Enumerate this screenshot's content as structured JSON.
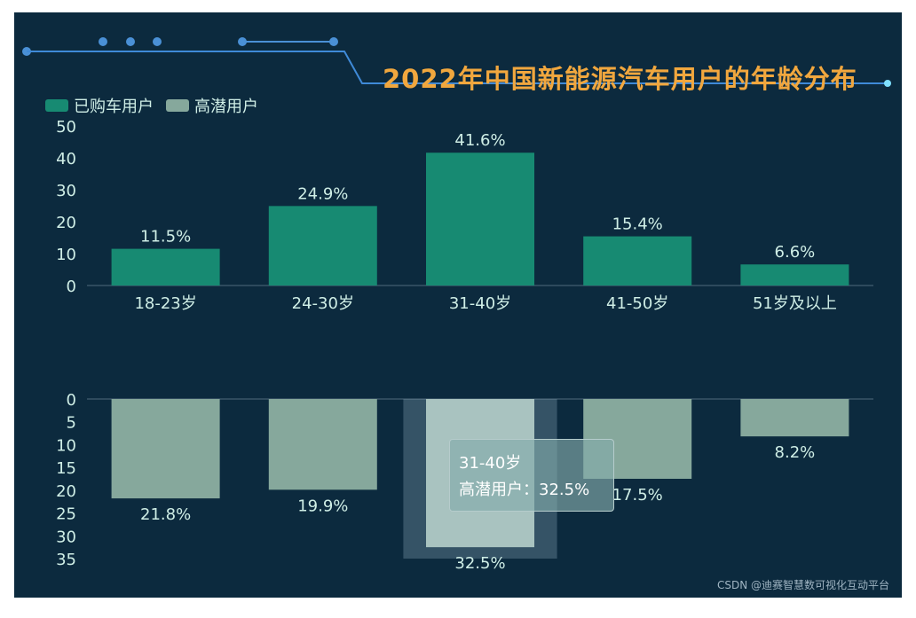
{
  "title": "2022年中国新能源汽车用户的年龄分布",
  "watermark": "CSDN @迪赛智慧数可视化互动平台",
  "colors": {
    "background": "#0c2a3e",
    "purchased": "#178a72",
    "potential": "#86a89c",
    "title": "#f1a73e",
    "text": "#cfeee6",
    "frame_line": "#3f8ad8"
  },
  "legend": [
    {
      "name": "已购车用户",
      "color": "#178a72"
    },
    {
      "name": "高潜用户",
      "color": "#86a89c"
    }
  ],
  "tooltip": {
    "category": "31-40岁",
    "series": "高潜用户",
    "separator": "：",
    "value": "32.5%"
  },
  "chart_data": {
    "type": "bar",
    "categories": [
      "18-23岁",
      "24-30岁",
      "31-40岁",
      "41-50岁",
      "51岁及以上"
    ],
    "series": [
      {
        "name": "已购车用户",
        "values": [
          11.5,
          24.9,
          41.6,
          15.4,
          6.6
        ],
        "labels": [
          "11.5%",
          "24.9%",
          "41.6%",
          "15.4%",
          "6.6%"
        ]
      },
      {
        "name": "高潜用户",
        "values": [
          21.8,
          19.9,
          32.5,
          17.5,
          8.2
        ],
        "labels": [
          "21.8%",
          "19.9%",
          "32.5%",
          "17.5%",
          "8.2%"
        ]
      }
    ],
    "top_axis": {
      "ylim": [
        0,
        50
      ],
      "ticks": [
        0,
        10,
        20,
        30,
        40,
        50
      ]
    },
    "bottom_axis": {
      "ylim": [
        0,
        35
      ],
      "ticks": [
        0,
        5,
        10,
        15,
        20,
        25,
        30,
        35
      ],
      "inverted": true
    },
    "highlighted_category": "31-40岁",
    "legend_position": "top-left",
    "grid": false
  }
}
